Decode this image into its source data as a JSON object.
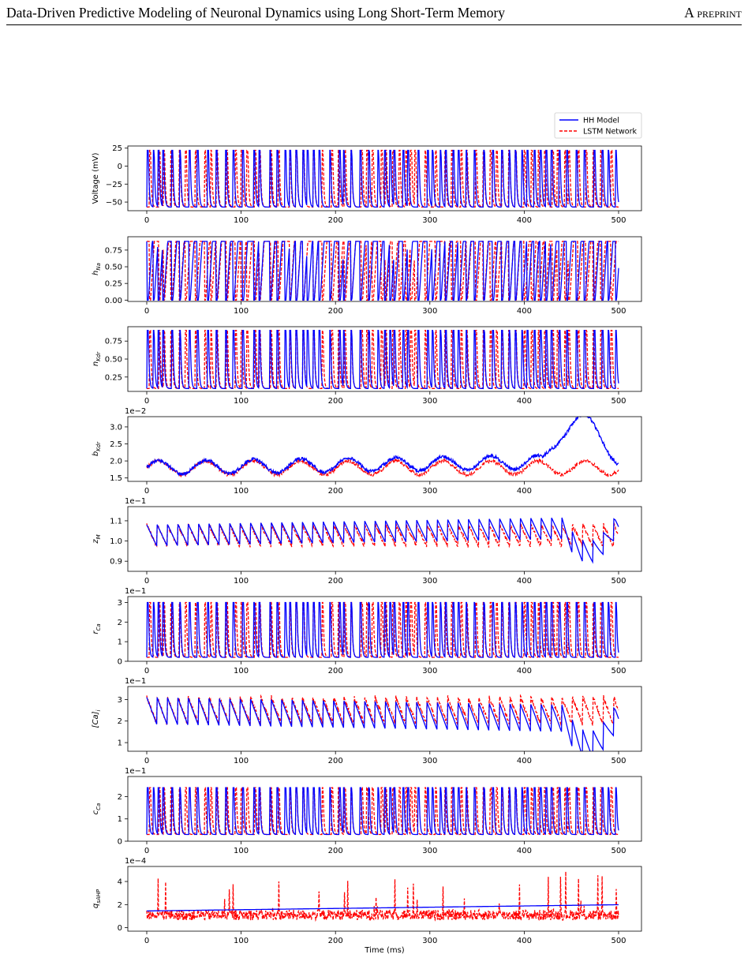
{
  "header": {
    "title": "Data-Driven Predictive Modeling of Neuronal Dynamics using Long Short-Term Memory",
    "tag": "A preprint"
  },
  "chart_data": {
    "type": "line",
    "xlabel": "Time (ms)",
    "xlim": [
      0,
      500
    ],
    "xticks": [
      "0",
      "100",
      "200",
      "300",
      "400",
      "500"
    ],
    "legend": {
      "placement": "top-right",
      "entries": [
        {
          "name": "HH Model",
          "color": "#0000ff",
          "style": "solid"
        },
        {
          "name": "LSTM Network",
          "color": "#ff0000",
          "style": "dashed"
        }
      ]
    },
    "panels": [
      {
        "ylabel": "Voltage (mV)",
        "ysub": "",
        "multiplier": "",
        "ylim": [
          -62,
          28
        ],
        "yticks": [
          [
            25,
            "25"
          ],
          [
            0,
            "0"
          ],
          [
            -25,
            "−25"
          ],
          [
            -50,
            "−50"
          ]
        ],
        "kind": "spike",
        "low": -57,
        "high": 22,
        "hh_trend": [
          0,
          0
        ],
        "lstm_trend": [
          0,
          0
        ],
        "tail": 0
      },
      {
        "ylabel": "h",
        "ysub": "Na",
        "multiplier": "",
        "ylim": [
          -0.02,
          0.95
        ],
        "yticks": [
          [
            0.75,
            "0.75"
          ],
          [
            0.5,
            "0.50"
          ],
          [
            0.25,
            "0.25"
          ],
          [
            0,
            "0.00"
          ]
        ],
        "kind": "invspike",
        "low": 0.0,
        "high": 0.88,
        "hh_trend": [
          0,
          0
        ],
        "lstm_trend": [
          0,
          0
        ],
        "tail": 0
      },
      {
        "ylabel": "n",
        "ysub": "Kdr",
        "multiplier": "",
        "ylim": [
          0.05,
          0.95
        ],
        "yticks": [
          [
            0.75,
            "0.75"
          ],
          [
            0.5,
            "0.50"
          ],
          [
            0.25,
            "0.25"
          ]
        ],
        "kind": "spike",
        "low": 0.09,
        "high": 0.9,
        "hh_trend": [
          0,
          0
        ],
        "lstm_trend": [
          0,
          0
        ],
        "tail": 0
      },
      {
        "ylabel": "b",
        "ysub": "Kdr",
        "multiplier": "1e−2",
        "ylim": [
          1.4,
          3.3
        ],
        "yticks": [
          [
            3,
            "3.0"
          ],
          [
            2.5,
            "2.5"
          ],
          [
            2,
            "2.0"
          ],
          [
            1.5,
            "1.5"
          ]
        ],
        "kind": "osc",
        "low": 1.6,
        "high": 2.0,
        "hh_trend": [
          0,
          0.2
        ],
        "lstm_trend": [
          0,
          0
        ],
        "tail": 1.2
      },
      {
        "ylabel": "z",
        "ysub": "M",
        "multiplier": "1e−1",
        "ylim": [
          0.85,
          1.17
        ],
        "yticks": [
          [
            1.1,
            "1.1"
          ],
          [
            1.0,
            "1.0"
          ],
          [
            0.9,
            "0.9"
          ]
        ],
        "kind": "saw",
        "low": 0.97,
        "high": 1.08,
        "hh_trend": [
          0,
          0.04
        ],
        "lstm_trend": [
          0,
          0
        ],
        "tail": -0.12
      },
      {
        "ylabel": "r",
        "ysub": "Ca",
        "multiplier": "1e−1",
        "ylim": [
          0,
          3.3
        ],
        "yticks": [
          [
            3,
            "3"
          ],
          [
            2,
            "2"
          ],
          [
            1,
            "1"
          ],
          [
            0,
            "0"
          ]
        ],
        "kind": "spike",
        "low": 0.2,
        "high": 3.0,
        "hh_trend": [
          0,
          0
        ],
        "lstm_trend": [
          0,
          0
        ],
        "tail": 0
      },
      {
        "ylabel": "[Ca]",
        "ysub": "i",
        "multiplier": "1e−1",
        "ylim": [
          0.6,
          3.6
        ],
        "yticks": [
          [
            3,
            "3"
          ],
          [
            2,
            "2"
          ],
          [
            1,
            "1"
          ]
        ],
        "kind": "saw",
        "low": 1.8,
        "high": 3.1,
        "hh_trend": [
          0,
          -0.4
        ],
        "lstm_trend": [
          0,
          0
        ],
        "tail": -1.2
      },
      {
        "ylabel": "c",
        "ysub": "Ca",
        "multiplier": "1e−1",
        "ylim": [
          0,
          2.9
        ],
        "yticks": [
          [
            2,
            "2"
          ],
          [
            1,
            "1"
          ],
          [
            0,
            "0"
          ]
        ],
        "kind": "spike",
        "low": 0.3,
        "high": 2.4,
        "hh_trend": [
          0,
          0
        ],
        "lstm_trend": [
          0,
          0
        ],
        "tail": 0
      },
      {
        "ylabel": "q",
        "ysub": "sAHP",
        "multiplier": "1e−4",
        "ylim": [
          -0.3,
          5.3
        ],
        "yticks": [
          [
            4,
            "4"
          ],
          [
            2,
            "2"
          ],
          [
            0,
            "0"
          ]
        ],
        "kind": "noise",
        "low": 1.45,
        "high": 2.05,
        "hh_trend": [
          0,
          0
        ],
        "lstm_trend": [
          0,
          0
        ],
        "tail": 0
      }
    ]
  }
}
